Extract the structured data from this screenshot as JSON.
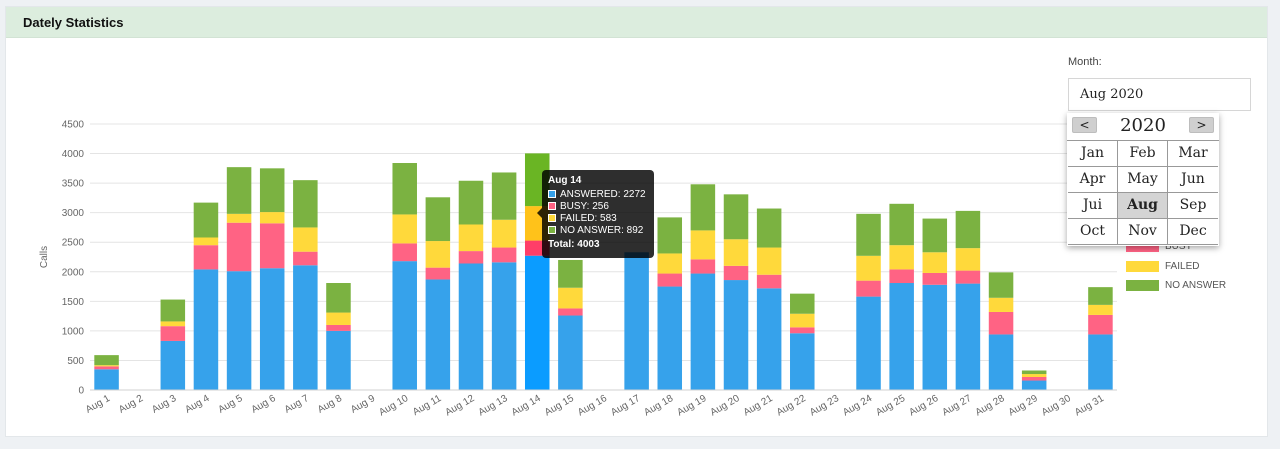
{
  "panel": {
    "title": "Dately Statistics"
  },
  "month": {
    "label": "Month:",
    "value": "Aug 2020",
    "picker": {
      "year": "2020",
      "prev": "<",
      "next": ">",
      "months": [
        "Jan",
        "Feb",
        "Mar",
        "Apr",
        "May",
        "Jun",
        "Jui",
        "Aug",
        "Sep",
        "Oct",
        "Nov",
        "Dec"
      ],
      "selected": "Aug"
    }
  },
  "legend": [
    {
      "label": "BUSY",
      "color": "#ff6384"
    },
    {
      "label": "FAILED",
      "color": "#ffd93b"
    },
    {
      "label": "NO ANSWER",
      "color": "#7bb241"
    }
  ],
  "tooltip": {
    "title": "Aug 14",
    "rows": [
      {
        "text": "ANSWERED: 2272",
        "color": "#36a2eb"
      },
      {
        "text": "BUSY: 256",
        "color": "#ff6384"
      },
      {
        "text": "FAILED: 583",
        "color": "#ffd93b"
      },
      {
        "text": "NO ANSWER: 892",
        "color": "#7bb241"
      }
    ],
    "total": "Total: 4003"
  },
  "chart_data": {
    "type": "bar",
    "stacked": true,
    "ylabel": "Calls",
    "xlabel": "",
    "ylim": [
      0,
      4500
    ],
    "yticks": [
      0,
      500,
      1000,
      1500,
      2000,
      2500,
      3000,
      3500,
      4000,
      4500
    ],
    "grid": true,
    "legend_position": "right",
    "highlighted_category": "Aug 14",
    "categories": [
      "Aug 1",
      "Aug 2",
      "Aug 3",
      "Aug 4",
      "Aug 5",
      "Aug 6",
      "Aug 7",
      "Aug 8",
      "Aug 9",
      "Aug 10",
      "Aug 11",
      "Aug 12",
      "Aug 13",
      "Aug 14",
      "Aug 15",
      "Aug 16",
      "Aug 17",
      "Aug 18",
      "Aug 19",
      "Aug 20",
      "Aug 21",
      "Aug 22",
      "Aug 23",
      "Aug 24",
      "Aug 25",
      "Aug 26",
      "Aug 27",
      "Aug 28",
      "Aug 29",
      "Aug 30",
      "Aug 31"
    ],
    "series": [
      {
        "name": "ANSWERED",
        "color": "#36a2eb",
        "values": [
          350,
          0,
          830,
          2040,
          2010,
          2060,
          2110,
          1000,
          0,
          2180,
          1870,
          2140,
          2160,
          2272,
          1260,
          0,
          2330,
          1750,
          1970,
          1860,
          1720,
          960,
          0,
          1580,
          1810,
          1780,
          1800,
          940,
          160,
          0,
          940
        ]
      },
      {
        "name": "BUSY",
        "color": "#ff6384",
        "values": [
          50,
          0,
          250,
          410,
          820,
          760,
          230,
          100,
          0,
          300,
          200,
          210,
          250,
          256,
          120,
          0,
          0,
          220,
          240,
          240,
          230,
          100,
          0,
          270,
          230,
          200,
          220,
          380,
          60,
          0,
          330
        ]
      },
      {
        "name": "FAILED",
        "color": "#ffd93b",
        "values": [
          20,
          0,
          80,
          130,
          150,
          190,
          410,
          210,
          0,
          490,
          450,
          450,
          470,
          583,
          350,
          0,
          0,
          340,
          490,
          450,
          460,
          230,
          0,
          420,
          410,
          350,
          380,
          240,
          50,
          0,
          170
        ]
      },
      {
        "name": "NO ANSWER",
        "color": "#7bb241",
        "values": [
          170,
          0,
          370,
          590,
          790,
          740,
          800,
          500,
          0,
          870,
          740,
          740,
          800,
          892,
          470,
          0,
          0,
          610,
          780,
          760,
          660,
          340,
          0,
          710,
          700,
          570,
          630,
          430,
          60,
          0,
          300
        ]
      }
    ]
  }
}
